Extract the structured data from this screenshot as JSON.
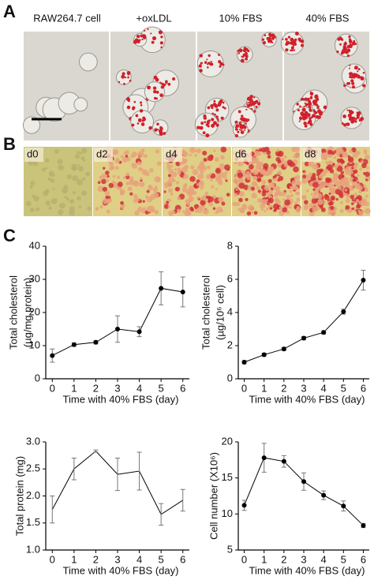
{
  "panels": {
    "A": {
      "label": "A",
      "images": [
        "RAW264.7 cell",
        "+oxLDL",
        "10% FBS",
        "40% FBS"
      ]
    },
    "B": {
      "label": "B",
      "images": [
        "d0",
        "d2",
        "d4",
        "d6",
        "d8"
      ]
    },
    "C": {
      "label": "C"
    }
  },
  "chart_data": [
    {
      "type": "line",
      "y_label": [
        "Total cholesterol",
        "(µg/mg protein)"
      ],
      "x_label": "Time with 40% FBS (day)",
      "x": [
        0,
        1,
        2,
        3,
        4,
        5,
        6
      ],
      "xlim": [
        -0.3,
        6.3
      ],
      "xticks": [
        0,
        1,
        2,
        3,
        4,
        5,
        6
      ],
      "values": [
        7,
        10.3,
        11,
        15,
        14.2,
        27.3,
        26.2
      ],
      "errors": [
        2,
        0.5,
        0.5,
        4,
        1.5,
        5,
        4.5
      ],
      "ylim": [
        0,
        40
      ],
      "yticks": [
        0,
        10,
        20,
        30,
        40
      ],
      "color": "#000000",
      "markers": true
    },
    {
      "type": "line",
      "y_label": [
        "Total cholesterol",
        "(µg/10⁶ cell)"
      ],
      "x_label": "Time with 40% FBS (day)",
      "x": [
        0,
        1,
        2,
        3,
        4,
        5,
        6
      ],
      "xlim": [
        -0.3,
        6.3
      ],
      "xticks": [
        0,
        1,
        2,
        3,
        4,
        5,
        6
      ],
      "values": [
        1.0,
        1.45,
        1.8,
        2.45,
        2.8,
        4.05,
        5.95
      ],
      "errors": [
        0.1,
        0.1,
        0.1,
        0.1,
        0.1,
        0.15,
        0.6
      ],
      "ylim": [
        0,
        8
      ],
      "yticks": [
        0,
        2,
        4,
        6,
        8
      ],
      "color": "#000000",
      "markers": true
    },
    {
      "type": "line",
      "y_label": [
        "Total protein (mg)"
      ],
      "x_label": "Time with 40% FBS (day)",
      "x": [
        0,
        1,
        2,
        3,
        4,
        5,
        6
      ],
      "xlim": [
        -0.3,
        6.3
      ],
      "xticks": [
        0,
        1,
        2,
        3,
        4,
        5,
        6
      ],
      "values": [
        1.75,
        2.5,
        2.83,
        2.4,
        2.46,
        1.66,
        1.92
      ],
      "errors": [
        0.25,
        0.2,
        0.02,
        0.3,
        0.35,
        0.2,
        0.2
      ],
      "ylim": [
        1,
        3
      ],
      "yticks": [
        {
          "value": 1,
          "label": "1.0"
        },
        1.5,
        {
          "value": 2,
          "label": "2.0"
        },
        2.5,
        {
          "value": 3,
          "label": "3.0"
        }
      ],
      "color": "#000000",
      "markers": false
    },
    {
      "type": "line",
      "y_label": [
        "Cell number (X10⁶)"
      ],
      "x_label": "Time with 40% FBS (day)",
      "x": [
        0,
        1,
        2,
        3,
        4,
        5,
        6
      ],
      "xlim": [
        -0.3,
        6.3
      ],
      "xticks": [
        0,
        1,
        2,
        3,
        4,
        5,
        6
      ],
      "values": [
        11.2,
        17.8,
        17.3,
        14.5,
        12.6,
        11.1,
        8.4
      ],
      "errors": [
        0.7,
        2,
        0.8,
        1.2,
        0.6,
        0.7,
        0.3
      ],
      "ylim": [
        5,
        20
      ],
      "yticks": [
        5,
        10,
        15,
        20
      ],
      "color": "#000000",
      "markers": true
    }
  ]
}
